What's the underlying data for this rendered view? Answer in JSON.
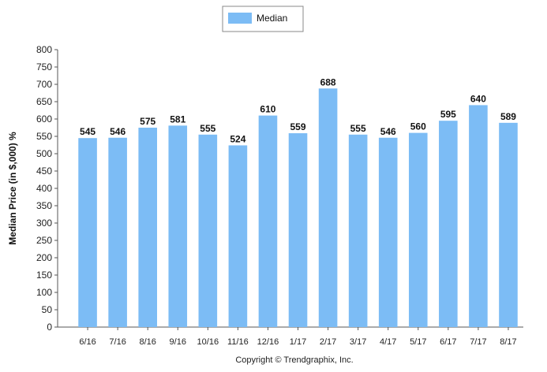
{
  "chart_data": {
    "type": "bar",
    "categories": [
      "6/16",
      "7/16",
      "8/16",
      "9/16",
      "10/16",
      "11/16",
      "12/16",
      "1/17",
      "2/17",
      "3/17",
      "4/17",
      "5/17",
      "6/17",
      "7/17",
      "8/17"
    ],
    "series": [
      {
        "name": "Median",
        "values": [
          545,
          546,
          575,
          581,
          555,
          524,
          610,
          559,
          688,
          555,
          546,
          560,
          595,
          640,
          589
        ],
        "color": "#7cbcf5"
      }
    ],
    "ylabel": "Median Price (in $,000) %",
    "xlabel": "",
    "ylim": [
      0,
      800
    ],
    "yticks": [
      0,
      50,
      100,
      150,
      200,
      250,
      300,
      350,
      400,
      450,
      500,
      550,
      600,
      650,
      700,
      750,
      800
    ],
    "grid": false,
    "legend_position": "top-center"
  },
  "footer": {
    "copyright": "Copyright © Trendgraphix, Inc."
  },
  "colors": {
    "axis": "#555555",
    "bar": "#7cbcf5"
  }
}
